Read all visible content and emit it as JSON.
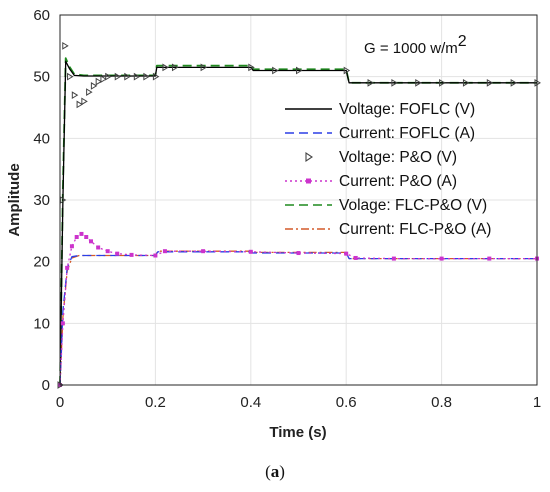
{
  "caption": {
    "open": "(",
    "letter": "a",
    "close": ")"
  },
  "chart_data": {
    "type": "line",
    "title": "",
    "xlabel": "Time (s)",
    "ylabel": "Amplitude",
    "xlim": [
      0,
      1
    ],
    "ylim": [
      0,
      60
    ],
    "xticks": [
      "0",
      "0.2",
      "0.4",
      "0.6",
      "0.8",
      "1"
    ],
    "yticks": [
      "0",
      "10",
      "20",
      "30",
      "40",
      "50",
      "60"
    ],
    "grid": true,
    "legend_position": "right",
    "annotation": {
      "prefix": "G = 1000 w/m",
      "superscript": "2"
    },
    "series": [
      {
        "name": "Voltage: FOFLC (V)",
        "color": "#000000",
        "style": "solid",
        "x": [
          0,
          0.006,
          0.012,
          0.02,
          0.03,
          0.05,
          0.2,
          0.203,
          0.4,
          0.405,
          0.6,
          0.606,
          1.0
        ],
        "y": [
          0,
          30,
          52.5,
          51.3,
          50.2,
          50.1,
          50.1,
          51.5,
          51.5,
          51,
          51,
          49,
          49
        ]
      },
      {
        "name": "Current: FOFLC (A)",
        "color": "#2b3fe6",
        "style": "dashed",
        "x": [
          0,
          0.006,
          0.015,
          0.025,
          0.04,
          0.2,
          0.205,
          0.4,
          0.405,
          0.6,
          0.606,
          1.0
        ],
        "y": [
          0,
          12,
          19,
          20.8,
          21,
          21,
          21.6,
          21.6,
          21.4,
          21.4,
          20.5,
          20.5
        ]
      },
      {
        "name": "Voltage: P&O (V)",
        "color": "#444444",
        "style": "marker-triangle",
        "x": [
          0,
          0.005,
          0.01,
          0.02,
          0.03,
          0.04,
          0.05,
          0.06,
          0.07,
          0.08,
          0.09,
          0.1,
          0.12,
          0.14,
          0.16,
          0.18,
          0.2,
          0.22,
          0.24,
          0.3,
          0.4,
          0.45,
          0.5,
          0.6,
          0.65,
          0.7,
          0.75,
          0.8,
          0.85,
          0.9,
          0.95,
          1.0
        ],
        "y": [
          0,
          30,
          55,
          50,
          47,
          45.5,
          46,
          47.5,
          48.5,
          49.2,
          49.6,
          50,
          50,
          50,
          50,
          50,
          50,
          51.5,
          51.5,
          51.5,
          51.5,
          51,
          51,
          51,
          49,
          49,
          49,
          49,
          49,
          49,
          49,
          49
        ]
      },
      {
        "name": "Current: P&O (A)",
        "color": "#cc33cc",
        "style": "dotted-square",
        "x": [
          0,
          0.006,
          0.015,
          0.025,
          0.035,
          0.045,
          0.055,
          0.065,
          0.08,
          0.1,
          0.12,
          0.15,
          0.2,
          0.22,
          0.3,
          0.4,
          0.5,
          0.6,
          0.62,
          0.7,
          0.8,
          0.9,
          1.0
        ],
        "y": [
          0,
          10,
          19,
          22.5,
          24,
          24.5,
          24,
          23.3,
          22.3,
          21.7,
          21.3,
          21.1,
          21,
          21.7,
          21.7,
          21.6,
          21.4,
          21.3,
          20.6,
          20.5,
          20.5,
          20.5,
          20.5
        ]
      },
      {
        "name": "Volage: FLC-P&O (V)",
        "color": "#1f8a1f",
        "style": "dashed",
        "x": [
          0,
          0.006,
          0.012,
          0.02,
          0.03,
          0.05,
          0.2,
          0.203,
          0.4,
          0.405,
          0.6,
          0.606,
          1.0
        ],
        "y": [
          0,
          32,
          53,
          51.6,
          50.4,
          50.2,
          50.2,
          51.8,
          51.8,
          51.2,
          51.2,
          49,
          49
        ]
      },
      {
        "name": "Current: FLC-P&O (A)",
        "color": "#d45a2a",
        "style": "dashdot",
        "x": [
          0,
          0.006,
          0.015,
          0.025,
          0.04,
          0.2,
          0.205,
          0.4,
          0.405,
          0.6,
          0.606,
          1.0
        ],
        "y": [
          0,
          11,
          18.5,
          20.6,
          21,
          21,
          21.7,
          21.7,
          21.5,
          21.5,
          20.5,
          20.5
        ]
      }
    ]
  }
}
